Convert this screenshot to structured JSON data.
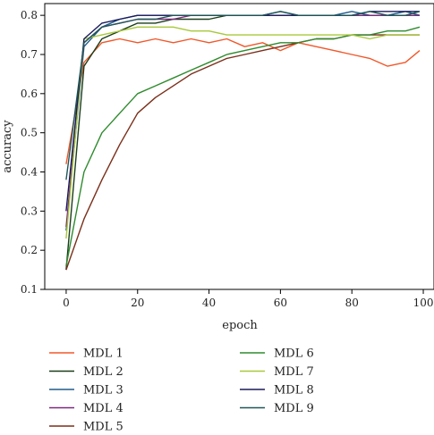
{
  "chart_data": {
    "type": "line",
    "title": "",
    "xlabel": "epoch",
    "ylabel": "accuracy",
    "xlim": [
      -6,
      103
    ],
    "ylim": [
      0.1,
      0.83
    ],
    "x_ticks": [
      0,
      20,
      40,
      60,
      80,
      100
    ],
    "y_ticks": [
      0.1,
      0.2,
      0.3,
      0.4,
      0.5,
      0.6,
      0.7,
      0.8
    ],
    "grid": false,
    "legend_position": "bottom, two columns",
    "x": [
      0,
      5,
      10,
      15,
      20,
      25,
      30,
      35,
      40,
      45,
      50,
      55,
      60,
      65,
      70,
      75,
      80,
      85,
      90,
      95,
      99
    ],
    "series": [
      {
        "name": "MDL 1",
        "color": "#f0582a",
        "values": [
          0.42,
          0.68,
          0.73,
          0.74,
          0.73,
          0.74,
          0.73,
          0.74,
          0.73,
          0.74,
          0.72,
          0.73,
          0.71,
          0.73,
          0.72,
          0.71,
          0.7,
          0.69,
          0.67,
          0.68,
          0.71
        ]
      },
      {
        "name": "MDL 2",
        "color": "#1a3d1a",
        "values": [
          0.15,
          0.67,
          0.74,
          0.76,
          0.78,
          0.78,
          0.79,
          0.79,
          0.79,
          0.8,
          0.8,
          0.8,
          0.8,
          0.8,
          0.8,
          0.8,
          0.8,
          0.8,
          0.8,
          0.8,
          0.8
        ]
      },
      {
        "name": "MDL 3",
        "color": "#1f5c8c",
        "values": [
          0.25,
          0.72,
          0.77,
          0.79,
          0.8,
          0.8,
          0.8,
          0.8,
          0.8,
          0.8,
          0.8,
          0.8,
          0.81,
          0.8,
          0.8,
          0.8,
          0.81,
          0.8,
          0.8,
          0.81,
          0.8
        ]
      },
      {
        "name": "MDL 4",
        "color": "#7a2a7a",
        "values": [
          0.26,
          0.73,
          0.77,
          0.78,
          0.79,
          0.79,
          0.79,
          0.8,
          0.8,
          0.8,
          0.8,
          0.8,
          0.8,
          0.8,
          0.8,
          0.8,
          0.8,
          0.8,
          0.8,
          0.8,
          0.8
        ]
      },
      {
        "name": "MDL 5",
        "color": "#7a2f1a",
        "values": [
          0.15,
          0.28,
          0.38,
          0.47,
          0.55,
          0.59,
          0.62,
          0.65,
          0.67,
          0.69,
          0.7,
          0.71,
          0.72,
          0.73,
          0.74,
          0.74,
          0.75,
          0.75,
          0.75,
          0.75,
          0.75
        ]
      },
      {
        "name": "MDL 6",
        "color": "#2e8b2e",
        "values": [
          0.16,
          0.4,
          0.5,
          0.55,
          0.6,
          0.62,
          0.64,
          0.66,
          0.68,
          0.7,
          0.71,
          0.72,
          0.73,
          0.73,
          0.74,
          0.74,
          0.75,
          0.75,
          0.76,
          0.76,
          0.77
        ]
      },
      {
        "name": "MDL 7",
        "color": "#a8c83a",
        "values": [
          0.23,
          0.74,
          0.75,
          0.76,
          0.77,
          0.77,
          0.77,
          0.76,
          0.76,
          0.75,
          0.75,
          0.75,
          0.75,
          0.75,
          0.75,
          0.75,
          0.75,
          0.74,
          0.75,
          0.75,
          0.75
        ]
      },
      {
        "name": "MDL 8",
        "color": "#1a1a5c",
        "values": [
          0.3,
          0.74,
          0.78,
          0.79,
          0.8,
          0.8,
          0.8,
          0.8,
          0.8,
          0.8,
          0.8,
          0.8,
          0.8,
          0.8,
          0.8,
          0.8,
          0.8,
          0.81,
          0.81,
          0.81,
          0.81
        ]
      },
      {
        "name": "MDL 9",
        "color": "#1f5757",
        "values": [
          0.38,
          0.73,
          0.77,
          0.78,
          0.79,
          0.79,
          0.8,
          0.8,
          0.8,
          0.8,
          0.8,
          0.8,
          0.81,
          0.8,
          0.8,
          0.8,
          0.8,
          0.81,
          0.8,
          0.8,
          0.81
        ]
      }
    ]
  }
}
